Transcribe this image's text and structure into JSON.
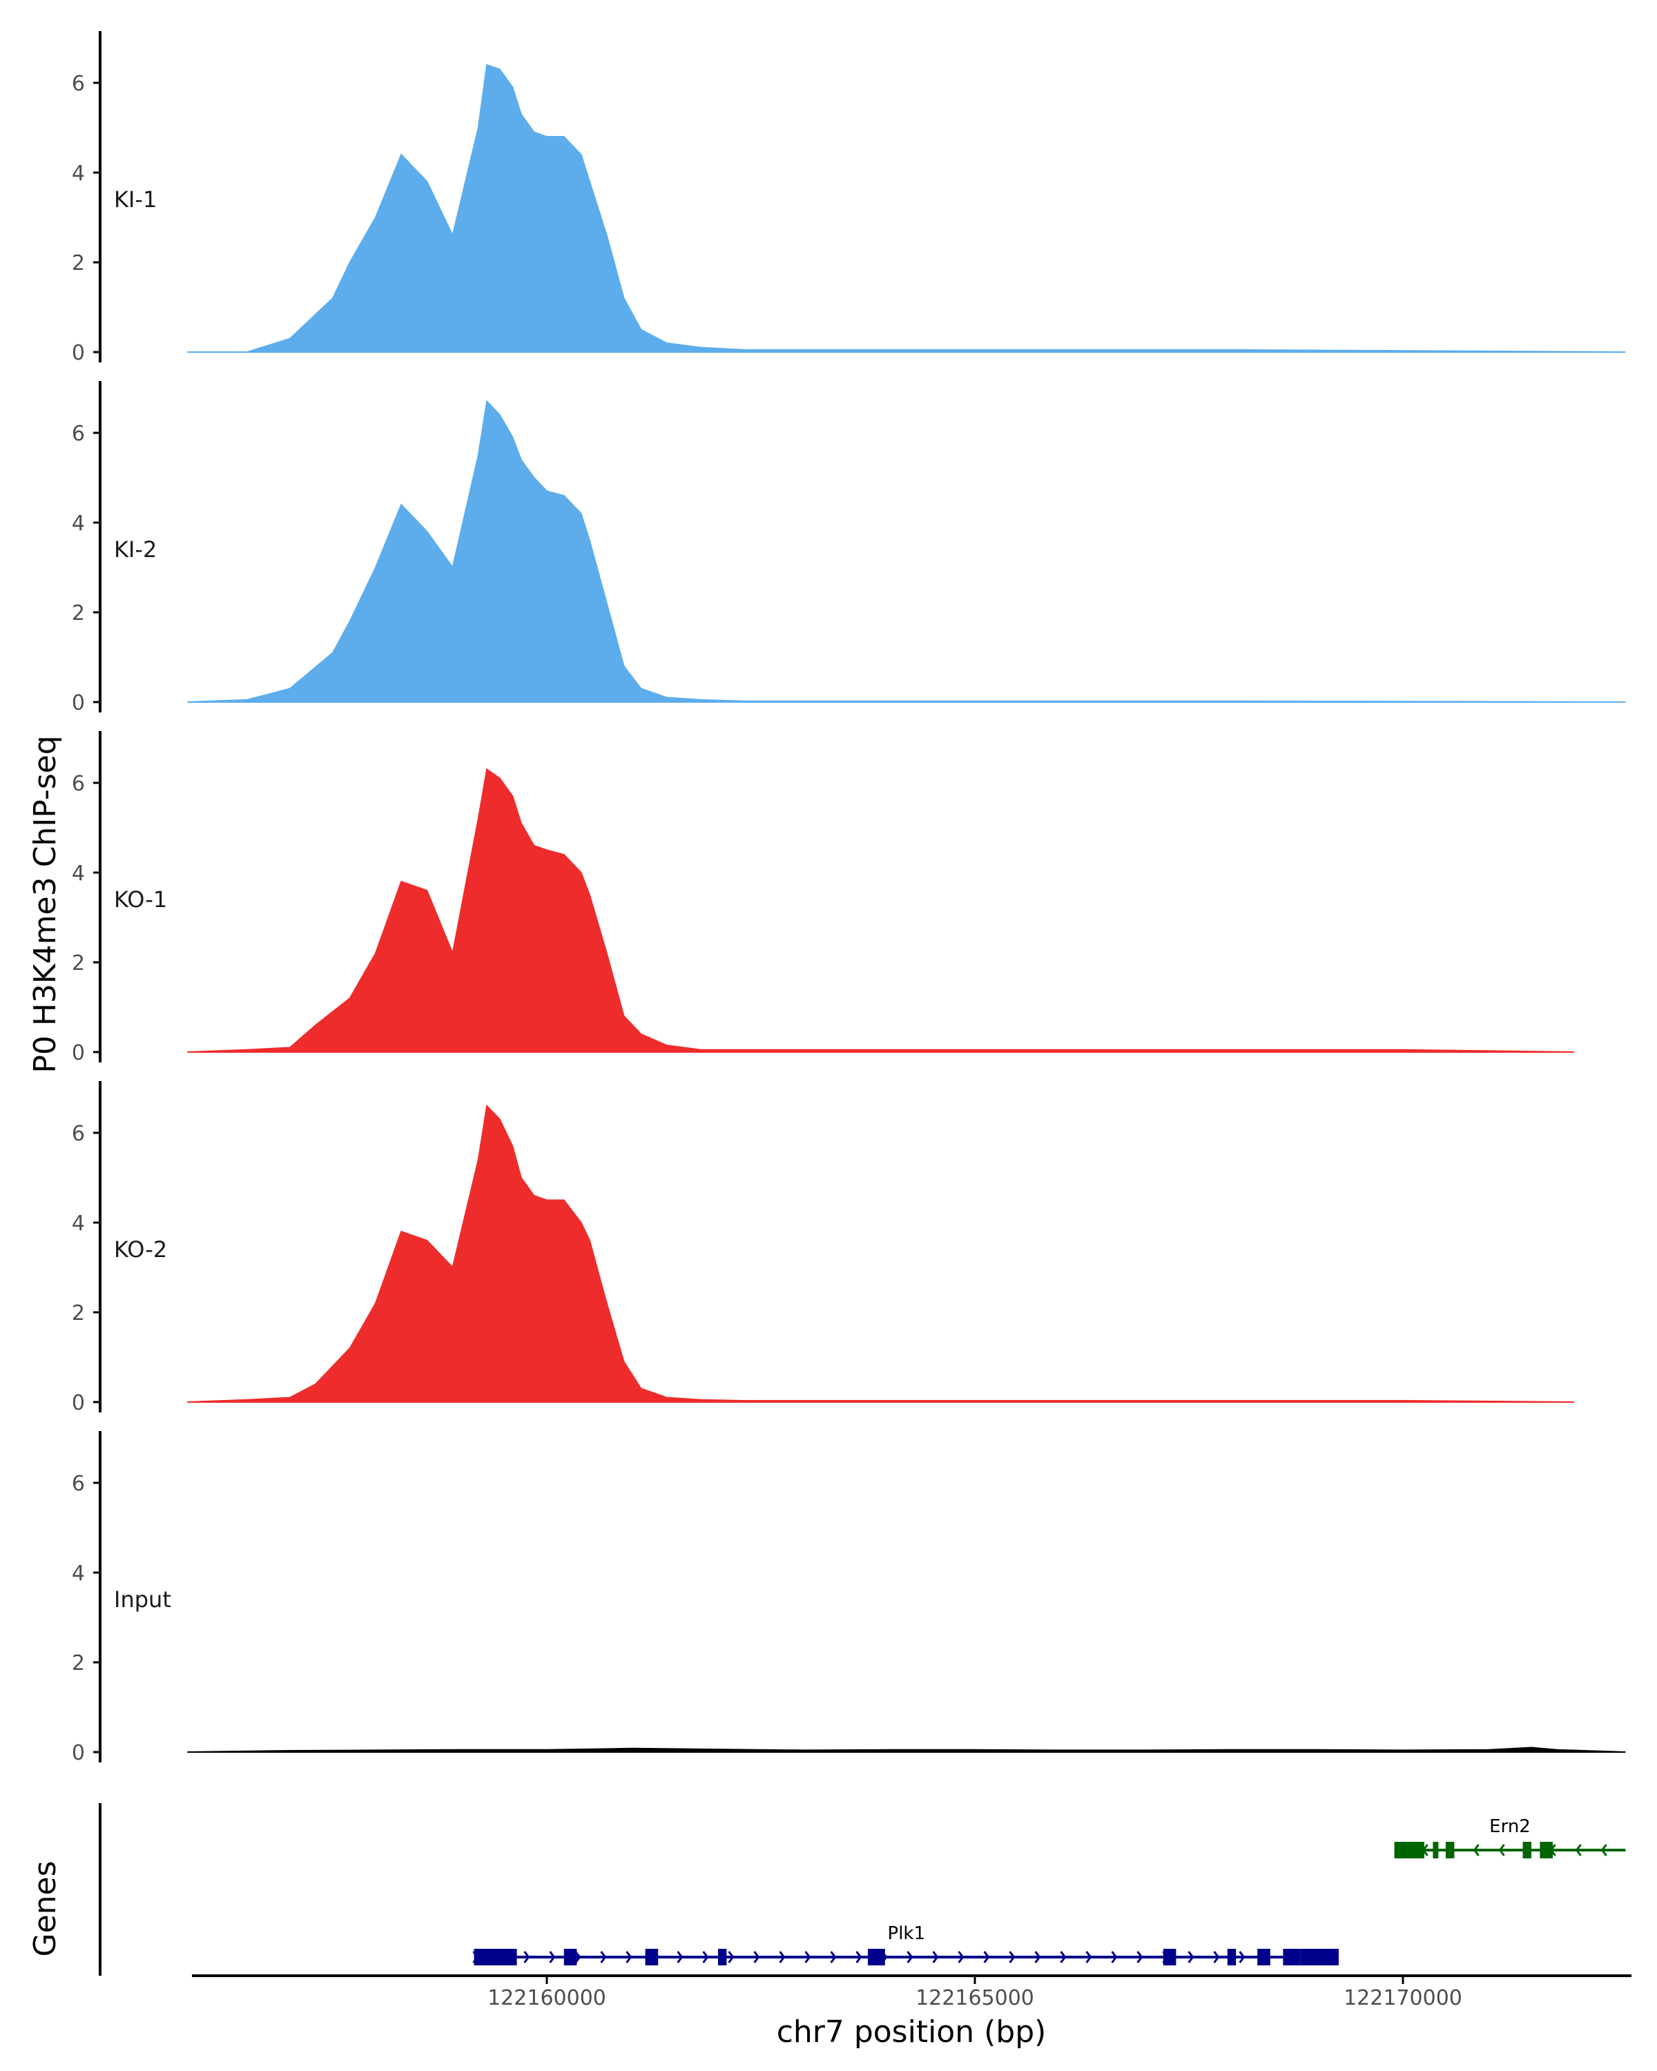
{
  "colors": {
    "KI": "#5DADEC",
    "KO": "#EE2C2C",
    "Input": "#000000",
    "plk1": "#00008B",
    "ern2": "#006400",
    "axis": "#000000"
  },
  "chart_data": {
    "type": "area",
    "ylabel": "P0 H3K4me3 ChIP-seq",
    "xlabel": "chr7 position (bp)",
    "genes_label": "Genes",
    "ylim": [
      0,
      7
    ],
    "yticks": [
      "0",
      "2",
      "4",
      "6"
    ],
    "xlim": [
      122155800,
      122172600
    ],
    "xticks": [
      {
        "v": 122160000,
        "label": "122160000"
      },
      {
        "v": 122165000,
        "label": "122165000"
      },
      {
        "v": 122170000,
        "label": "122170000"
      }
    ],
    "series": [
      {
        "name": "KI-1",
        "color_key": "KI",
        "x": [
          122155800,
          122156500,
          122157000,
          122157500,
          122157700,
          122158000,
          122158300,
          122158600,
          122158900,
          122159200,
          122159300,
          122159450,
          122159600,
          122159700,
          122159850,
          122160000,
          122160200,
          122160400,
          122160500,
          122160700,
          122160900,
          122161100,
          122161400,
          122161800,
          122162300,
          122163000,
          122165000,
          122168000,
          122172600
        ],
        "y": [
          0,
          0,
          0.3,
          1.2,
          2.0,
          3.0,
          4.4,
          3.8,
          2.6,
          5.0,
          6.4,
          6.3,
          5.9,
          5.3,
          4.9,
          4.8,
          4.8,
          4.4,
          3.8,
          2.6,
          1.2,
          0.5,
          0.2,
          0.1,
          0.05,
          0.05,
          0.05,
          0.05,
          0
        ]
      },
      {
        "name": "KI-2",
        "color_key": "KI",
        "x": [
          122155800,
          122156500,
          122157000,
          122157500,
          122157700,
          122158000,
          122158300,
          122158600,
          122158900,
          122159200,
          122159300,
          122159450,
          122159600,
          122159700,
          122159850,
          122160000,
          122160200,
          122160400,
          122160500,
          122160700,
          122160900,
          122161100,
          122161400,
          122161800,
          122162300,
          122163000,
          122165000,
          122168000,
          122172600
        ],
        "y": [
          0,
          0.05,
          0.3,
          1.1,
          1.8,
          3.0,
          4.4,
          3.8,
          3.0,
          5.5,
          6.7,
          6.4,
          5.9,
          5.4,
          5.0,
          4.7,
          4.6,
          4.2,
          3.6,
          2.2,
          0.8,
          0.3,
          0.1,
          0.05,
          0.02,
          0.02,
          0.02,
          0.02,
          0
        ]
      },
      {
        "name": "KO-1",
        "color_key": "KO",
        "x": [
          122155800,
          122156500,
          122157000,
          122157300,
          122157700,
          122158000,
          122158300,
          122158600,
          122158900,
          122159200,
          122159300,
          122159450,
          122159600,
          122159700,
          122159850,
          122160000,
          122160200,
          122160400,
          122160500,
          122160700,
          122160900,
          122161100,
          122161400,
          122161800,
          122162300,
          122163000,
          122165000,
          122168000,
          122170000,
          122172000
        ],
        "y": [
          0,
          0.05,
          0.1,
          0.6,
          1.2,
          2.2,
          3.8,
          3.6,
          2.2,
          5.2,
          6.3,
          6.1,
          5.7,
          5.1,
          4.6,
          4.5,
          4.4,
          4.0,
          3.5,
          2.2,
          0.8,
          0.4,
          0.15,
          0.05,
          0.05,
          0.05,
          0.05,
          0.05,
          0.05,
          0
        ]
      },
      {
        "name": "KO-2",
        "color_key": "KO",
        "x": [
          122155800,
          122156500,
          122157000,
          122157300,
          122157700,
          122158000,
          122158300,
          122158600,
          122158900,
          122159200,
          122159300,
          122159450,
          122159600,
          122159700,
          122159850,
          122160000,
          122160200,
          122160400,
          122160500,
          122160700,
          122160900,
          122161100,
          122161400,
          122161800,
          122162300,
          122163000,
          122165000,
          122168000,
          122170000,
          122172000
        ],
        "y": [
          0,
          0.05,
          0.1,
          0.4,
          1.2,
          2.2,
          3.8,
          3.6,
          3.0,
          5.4,
          6.6,
          6.3,
          5.7,
          5.0,
          4.6,
          4.5,
          4.5,
          4.0,
          3.6,
          2.2,
          0.9,
          0.3,
          0.1,
          0.05,
          0.03,
          0.03,
          0.03,
          0.03,
          0.03,
          0
        ]
      },
      {
        "name": "Input",
        "color_key": "Input",
        "x": [
          122155800,
          122157000,
          122158000,
          122159000,
          122160000,
          122161000,
          122162000,
          122163000,
          122164000,
          122165000,
          122166000,
          122167000,
          122168000,
          122169000,
          122170000,
          122171000,
          122171500,
          122171800,
          122172600
        ],
        "y": [
          0,
          0.03,
          0.04,
          0.05,
          0.05,
          0.08,
          0.06,
          0.04,
          0.05,
          0.05,
          0.04,
          0.04,
          0.05,
          0.05,
          0.04,
          0.05,
          0.1,
          0.05,
          0
        ]
      }
    ],
    "genes": [
      {
        "name": "Plk1",
        "color_key": "plk1",
        "row": 1,
        "strand": "+",
        "start": 122159150,
        "end": 122169250,
        "exons": [
          [
            122159150,
            122159650
          ],
          [
            122160200,
            122160350
          ],
          [
            122161150,
            122161300
          ],
          [
            122162000,
            122162100
          ],
          [
            122163750,
            122163950
          ],
          [
            122167200,
            122167350
          ],
          [
            122167950,
            122168050
          ],
          [
            122168300,
            122168450
          ],
          [
            122168600,
            122168800
          ],
          [
            122168800,
            122169250
          ]
        ]
      },
      {
        "name": "Ern2",
        "color_key": "ern2",
        "row": 2,
        "strand": "-",
        "start": 122169900,
        "end": 122172600,
        "exons": [
          [
            122169900,
            122170250
          ],
          [
            122170350,
            122170400
          ],
          [
            122170500,
            122170600
          ],
          [
            122171400,
            122171500
          ],
          [
            122171600,
            122171750
          ]
        ]
      }
    ]
  }
}
